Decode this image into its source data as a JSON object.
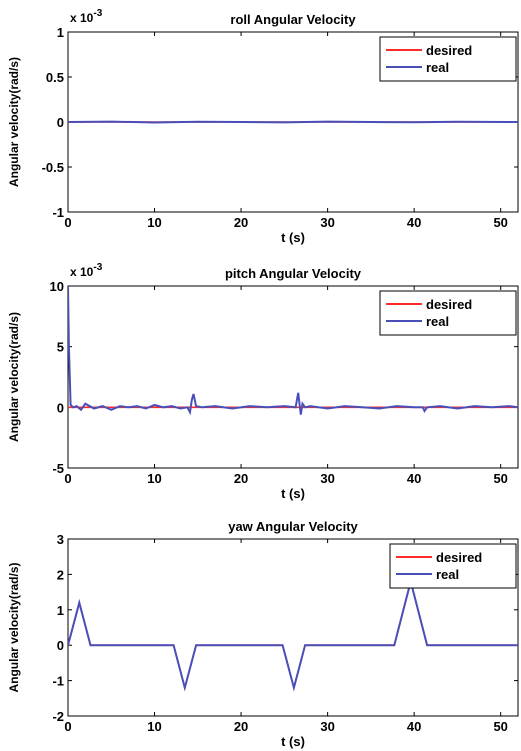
{
  "colors": {
    "desired": "#ff2a2a",
    "real": "#4a4fb8",
    "axis": "#000000"
  },
  "chart_data": [
    {
      "type": "line",
      "title": "roll Angular Velocity",
      "xlabel": "t    (s)",
      "ylabel": "Angular velocity(rad/s)",
      "y_exponent": "x 10",
      "y_exponent_power": "-3",
      "xlim": [
        0,
        52
      ],
      "ylim": [
        -1,
        1
      ],
      "xticks": [
        0,
        10,
        20,
        30,
        40,
        50
      ],
      "yticks": [
        -1,
        -0.5,
        0,
        0.5,
        1
      ],
      "ytick_labels": [
        "-1",
        "-0.5",
        "0",
        "0.5",
        "1"
      ],
      "legend_position": "top-right",
      "series": [
        {
          "name": "desired",
          "x": [
            0,
            52
          ],
          "y": [
            0,
            0
          ]
        },
        {
          "name": "real",
          "x": [
            0,
            5,
            10,
            15,
            20,
            25,
            30,
            35,
            40,
            45,
            52
          ],
          "y": [
            0,
            0.005,
            -0.005,
            0.003,
            0,
            -0.004,
            0.004,
            0,
            -0.003,
            0.003,
            0
          ]
        }
      ]
    },
    {
      "type": "line",
      "title": "pitch Angular Velocity",
      "xlabel": "t    (s)",
      "ylabel": "Angular velocity(rad/s)",
      "y_exponent": "x 10",
      "y_exponent_power": "-3",
      "xlim": [
        0,
        52
      ],
      "ylim": [
        -5,
        10
      ],
      "xticks": [
        0,
        10,
        20,
        30,
        40,
        50
      ],
      "yticks": [
        -5,
        0,
        5,
        10
      ],
      "ytick_labels": [
        "-5",
        "0",
        "5",
        "10"
      ],
      "legend_position": "top-right",
      "series": [
        {
          "name": "desired",
          "x": [
            0,
            52
          ],
          "y": [
            0,
            0
          ]
        },
        {
          "name": "real",
          "x": [
            0,
            0.1,
            0.3,
            0.6,
            1,
            1.5,
            2,
            3,
            4,
            5,
            6,
            7,
            8,
            9,
            10,
            11,
            12,
            13,
            13.8,
            14.1,
            14.3,
            14.5,
            14.8,
            15.5,
            17,
            19,
            21,
            23,
            25,
            26.3,
            26.6,
            26.9,
            27.1,
            27.4,
            28,
            30,
            32,
            34,
            36,
            38,
            40,
            41,
            41.2,
            41.5,
            43,
            45,
            47,
            49,
            51,
            52
          ],
          "y": [
            10,
            5,
            0.2,
            0,
            0.1,
            -0.2,
            0.3,
            -0.1,
            0.1,
            -0.2,
            0.1,
            0,
            0.1,
            -0.1,
            0.2,
            0,
            0.1,
            -0.1,
            0,
            -0.4,
            0.6,
            1.1,
            0.1,
            0,
            0.1,
            -0.1,
            0.1,
            0,
            0.1,
            0,
            1.2,
            -0.6,
            0.3,
            0,
            0.1,
            -0.1,
            0.1,
            0,
            -0.1,
            0.1,
            0,
            0,
            -0.3,
            0,
            0.1,
            -0.1,
            0.1,
            0,
            0.1,
            0
          ]
        }
      ]
    },
    {
      "type": "line",
      "title": "yaw Angular Velocity",
      "xlabel": "t    (s)",
      "ylabel": "Angular velocity(rad/s)",
      "y_exponent": "",
      "y_exponent_power": "",
      "xlim": [
        0,
        52
      ],
      "ylim": [
        -2,
        3
      ],
      "xticks": [
        0,
        10,
        20,
        30,
        40,
        50
      ],
      "yticks": [
        -2,
        -1,
        0,
        1,
        2,
        3
      ],
      "ytick_labels": [
        "-2",
        "-1",
        "0",
        "1",
        "2",
        "3"
      ],
      "legend_position": "top-right",
      "series": [
        {
          "name": "desired",
          "x": [
            0,
            1.3,
            2.6,
            12.2,
            13.5,
            14.8,
            24.8,
            26.1,
            27.4,
            37.7,
            39.6,
            41.5,
            52
          ],
          "y": [
            0,
            1.2,
            0,
            0,
            -1.2,
            0,
            0,
            -1.2,
            0,
            0,
            1.8,
            0,
            0
          ]
        },
        {
          "name": "real",
          "x": [
            0,
            1.3,
            2.6,
            12.2,
            13.5,
            14.8,
            24.8,
            26.1,
            27.4,
            37.7,
            39.6,
            41.5,
            52
          ],
          "y": [
            0,
            1.2,
            0,
            0,
            -1.2,
            0,
            0,
            -1.2,
            0,
            0,
            1.8,
            0,
            0
          ]
        }
      ]
    }
  ]
}
